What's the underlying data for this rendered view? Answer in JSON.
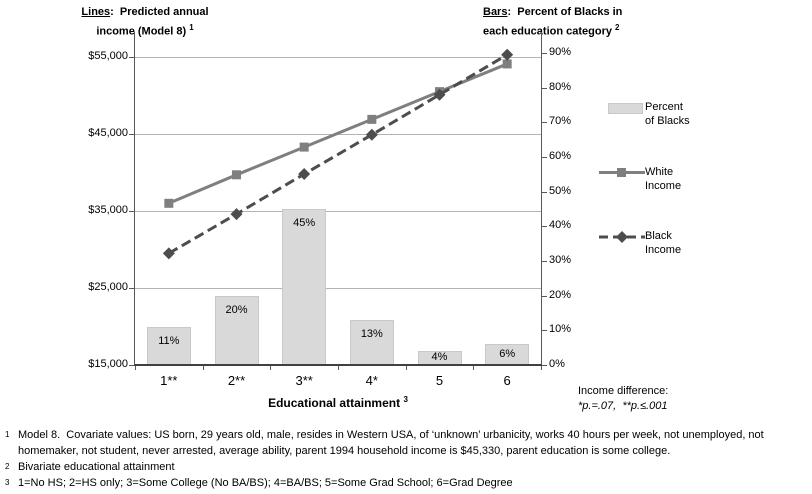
{
  "chart_data": {
    "type": "combo-bar-line",
    "categories": [
      "1**",
      "2**",
      "3**",
      "4*",
      "5",
      "6"
    ],
    "bars": {
      "name": "Percent of Blacks",
      "values": [
        11,
        20,
        45,
        13,
        4,
        6
      ],
      "labels": [
        "11%",
        "20%",
        "45%",
        "13%",
        "4%",
        "6%"
      ]
    },
    "series": [
      {
        "name": "White Income",
        "style": "solid-square",
        "values": [
          36000,
          39700,
          43300,
          46900,
          50500,
          54100
        ]
      },
      {
        "name": "Black Income",
        "style": "dashed-diamond",
        "values": [
          29500,
          34600,
          39800,
          44900,
          50100,
          55300
        ]
      }
    ],
    "left_axis": {
      "min": 15000,
      "max": 55000,
      "tick_values": [
        15000,
        25000,
        35000,
        45000,
        55000
      ],
      "tick_labels": [
        "$15,000",
        "$25,000",
        "$35,000",
        "$45,000",
        "$55,000"
      ]
    },
    "right_axis": {
      "min": 0,
      "max": 90,
      "tick_values": [
        0,
        10,
        20,
        30,
        40,
        50,
        60,
        70,
        80,
        90
      ],
      "tick_labels": [
        "0%",
        "10%",
        "20%",
        "30%",
        "40%",
        "50%",
        "60%",
        "70%",
        "80%",
        "90%"
      ]
    },
    "x_title": {
      "text": "Educational attainment",
      "sup": "3"
    },
    "grid": true,
    "legend_position": "right"
  },
  "titles": {
    "lines": {
      "keyword": "Lines",
      "after": ":  Predicted annual",
      "line2": "income (Model 8) ",
      "sup": "1"
    },
    "bars": {
      "keyword": "Bars",
      "after": ":  Percent of Blacks in",
      "line2": "each education category ",
      "sup": "2"
    }
  },
  "legend": {
    "items": [
      {
        "label": "Percent\nof Blacks"
      },
      {
        "label": "White\nIncome"
      },
      {
        "label": "Black\nIncome"
      }
    ]
  },
  "income_note": {
    "line1": "Income difference:",
    "line2": "*p.=.07,  **p.≤.001"
  },
  "footnotes": [
    {
      "marker": "1",
      "text": "Model 8.  Covariate values: US born, 29 years old, male, resides in Western USA, of ‘unknown’ urbanicity, works 40 hours per week, not unemployed, not homemaker, not student, never arrested, average ability, parent 1994 household income is $45,330, parent education is some college."
    },
    {
      "marker": "2",
      "text": "Bivariate educational attainment"
    },
    {
      "marker": "3",
      "text": "1=No HS; 2=HS only; 3=Some College (No BA/BS); 4=BA/BS; 5=Some Grad School; 6=Grad Degree"
    }
  ],
  "colors": {
    "bar_fill": "#d9d9d9",
    "bar_border": "#c9c9c9",
    "white_line": "#7f7f7f",
    "black_line": "#4d4d4d",
    "gridline": "#b3b3b3",
    "axis": "#595959",
    "x_axis": "#404040",
    "text": "#000000"
  }
}
